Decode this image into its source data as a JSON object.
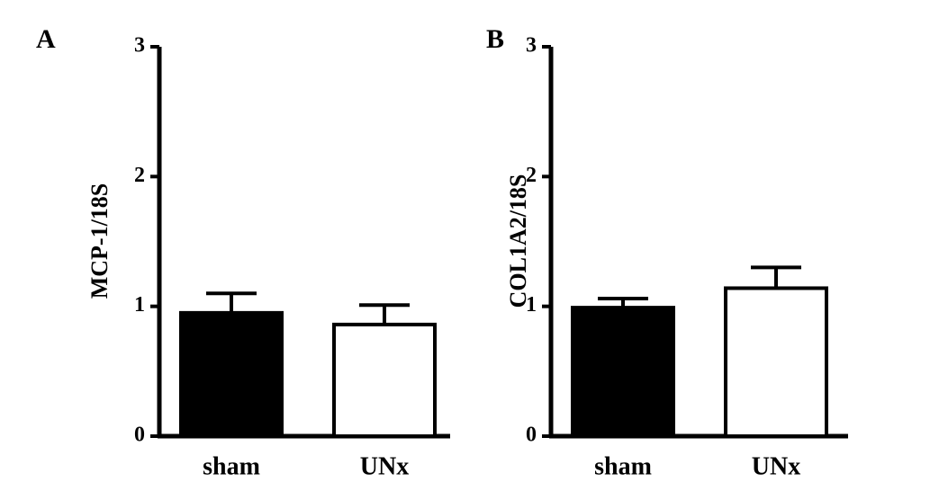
{
  "chart_data": [
    {
      "type": "bar",
      "panel": "A",
      "ylabel": "MCP-1/18S",
      "categories": [
        "sham",
        "UNx"
      ],
      "values": [
        0.95,
        0.86
      ],
      "errors": [
        0.15,
        0.15
      ],
      "colors": [
        "#000000",
        "#ffffff"
      ],
      "ylim": [
        0,
        3
      ],
      "yticks": [
        0,
        1,
        2,
        3
      ]
    },
    {
      "type": "bar",
      "panel": "B",
      "ylabel": "COL1A2/18S",
      "categories": [
        "sham",
        "UNx"
      ],
      "values": [
        0.99,
        1.14
      ],
      "errors": [
        0.07,
        0.16
      ],
      "colors": [
        "#000000",
        "#ffffff"
      ],
      "ylim": [
        0,
        3
      ],
      "yticks": [
        0,
        1,
        2,
        3
      ]
    }
  ]
}
